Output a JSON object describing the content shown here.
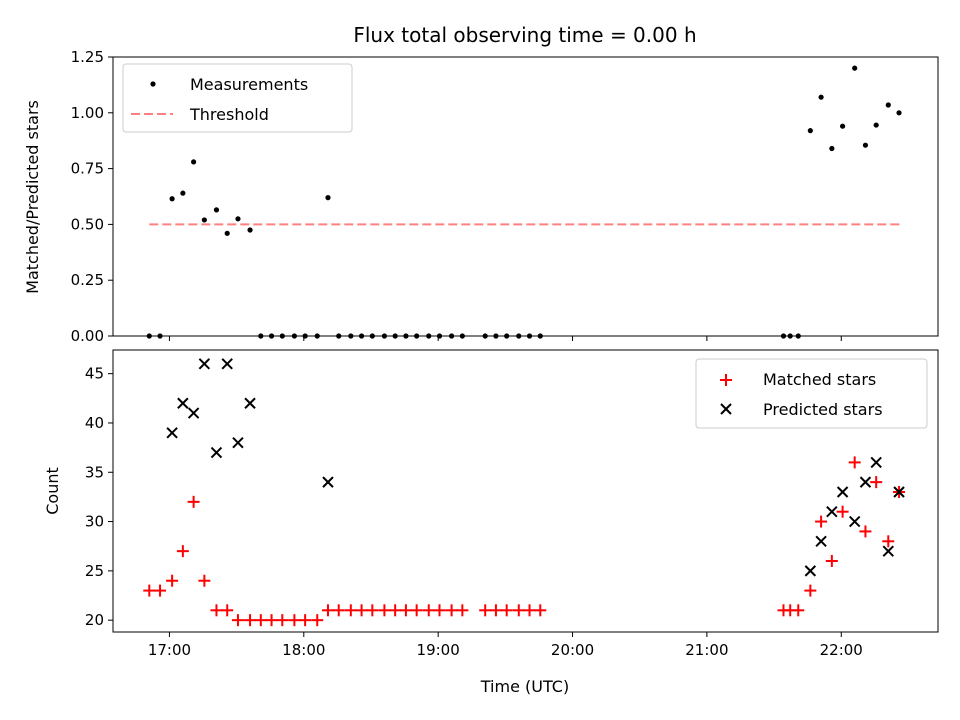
{
  "chart_data": [
    {
      "type": "scatter",
      "title": "Flux total observing time = 0.00 h",
      "xlabel": "",
      "ylabel": "Matched/Predicted stars",
      "ylim": [
        0,
        1.25
      ],
      "yticks": [
        "0.00",
        "0.25",
        "0.50",
        "0.75",
        "1.00",
        "1.25"
      ],
      "ytick_values": [
        0,
        0.25,
        0.5,
        0.75,
        1.0,
        1.25
      ],
      "xlim_hours": [
        16.58,
        22.72
      ],
      "xtick_hours": [
        17,
        18,
        19,
        20,
        21,
        22
      ],
      "legend_placement": "top-left",
      "series": [
        {
          "name": "Measurements",
          "marker": "dot",
          "color": "#000000",
          "x_hours": [
            16.85,
            16.93,
            17.02,
            17.1,
            17.18,
            17.26,
            17.35,
            17.43,
            17.51,
            17.6,
            17.68,
            17.76,
            17.84,
            17.93,
            18.01,
            18.1,
            18.18,
            18.26,
            18.35,
            18.43,
            18.51,
            18.6,
            18.68,
            18.76,
            18.84,
            18.93,
            19.01,
            19.1,
            19.18,
            19.35,
            19.43,
            19.51,
            19.6,
            19.68,
            19.76,
            21.57,
            21.62,
            21.68,
            21.77,
            21.85,
            21.93,
            22.01,
            22.1,
            22.18,
            22.26,
            22.35,
            22.43
          ],
          "y": [
            0.0,
            0.0,
            0.615,
            0.64,
            0.78,
            0.52,
            0.565,
            0.46,
            0.525,
            0.475,
            0.0,
            0.0,
            0.0,
            0.0,
            0.0,
            0.0,
            0.62,
            0.0,
            0.0,
            0.0,
            0.0,
            0.0,
            0.0,
            0.0,
            0.0,
            0.0,
            0.0,
            0.0,
            0.0,
            0.0,
            0.0,
            0.0,
            0.0,
            0.0,
            0.0,
            0.0,
            0.0,
            0.0,
            0.92,
            1.07,
            0.84,
            0.94,
            1.2,
            0.855,
            0.945,
            1.035,
            1.0
          ]
        },
        {
          "name": "Threshold",
          "style": "dashed",
          "color": "#ff8080",
          "x_hours": [
            16.85,
            22.45
          ],
          "y": [
            0.5,
            0.5
          ]
        }
      ]
    },
    {
      "type": "scatter",
      "title": "",
      "xlabel": "Time (UTC)",
      "ylabel": "Count",
      "ylim": [
        18.8,
        47.4
      ],
      "yticks": [
        "20",
        "25",
        "30",
        "35",
        "40",
        "45"
      ],
      "ytick_values": [
        20,
        25,
        30,
        35,
        40,
        45
      ],
      "xlim_hours": [
        16.58,
        22.72
      ],
      "xtick_hours": [
        17,
        18,
        19,
        20,
        21,
        22
      ],
      "xtick_labels": [
        "17:00",
        "18:00",
        "19:00",
        "20:00",
        "21:00",
        "22:00"
      ],
      "legend_placement": "top-right",
      "series": [
        {
          "name": "Matched stars",
          "marker": "plus",
          "color": "#ff0000",
          "x_hours": [
            16.85,
            16.93,
            17.02,
            17.1,
            17.18,
            17.26,
            17.35,
            17.43,
            17.51,
            17.6,
            17.68,
            17.76,
            17.84,
            17.93,
            18.01,
            18.1,
            18.18,
            18.26,
            18.35,
            18.43,
            18.51,
            18.6,
            18.68,
            18.76,
            18.84,
            18.93,
            19.01,
            19.1,
            19.18,
            19.35,
            19.43,
            19.51,
            19.6,
            19.68,
            19.76,
            21.57,
            21.62,
            21.68,
            21.77,
            21.85,
            21.93,
            22.01,
            22.1,
            22.18,
            22.26,
            22.35,
            22.43
          ],
          "y": [
            23,
            23,
            24,
            27,
            32,
            24,
            21,
            21,
            20,
            20,
            20,
            20,
            20,
            20,
            20,
            20,
            21,
            21,
            21,
            21,
            21,
            21,
            21,
            21,
            21,
            21,
            21,
            21,
            21,
            21,
            21,
            21,
            21,
            21,
            21,
            21,
            21,
            21,
            23,
            30,
            26,
            31,
            36,
            29,
            34,
            28,
            33
          ]
        },
        {
          "name": "Predicted stars",
          "marker": "x",
          "color": "#000000",
          "x_hours": [
            17.02,
            17.1,
            17.18,
            17.26,
            17.35,
            17.43,
            17.51,
            17.6,
            18.18,
            21.77,
            21.85,
            21.93,
            22.01,
            22.1,
            22.18,
            22.26,
            22.35,
            22.43
          ],
          "y": [
            39,
            42,
            41,
            46,
            37,
            46,
            38,
            42,
            34,
            25,
            28,
            31,
            33,
            30,
            34,
            36,
            27,
            33
          ]
        }
      ]
    }
  ]
}
